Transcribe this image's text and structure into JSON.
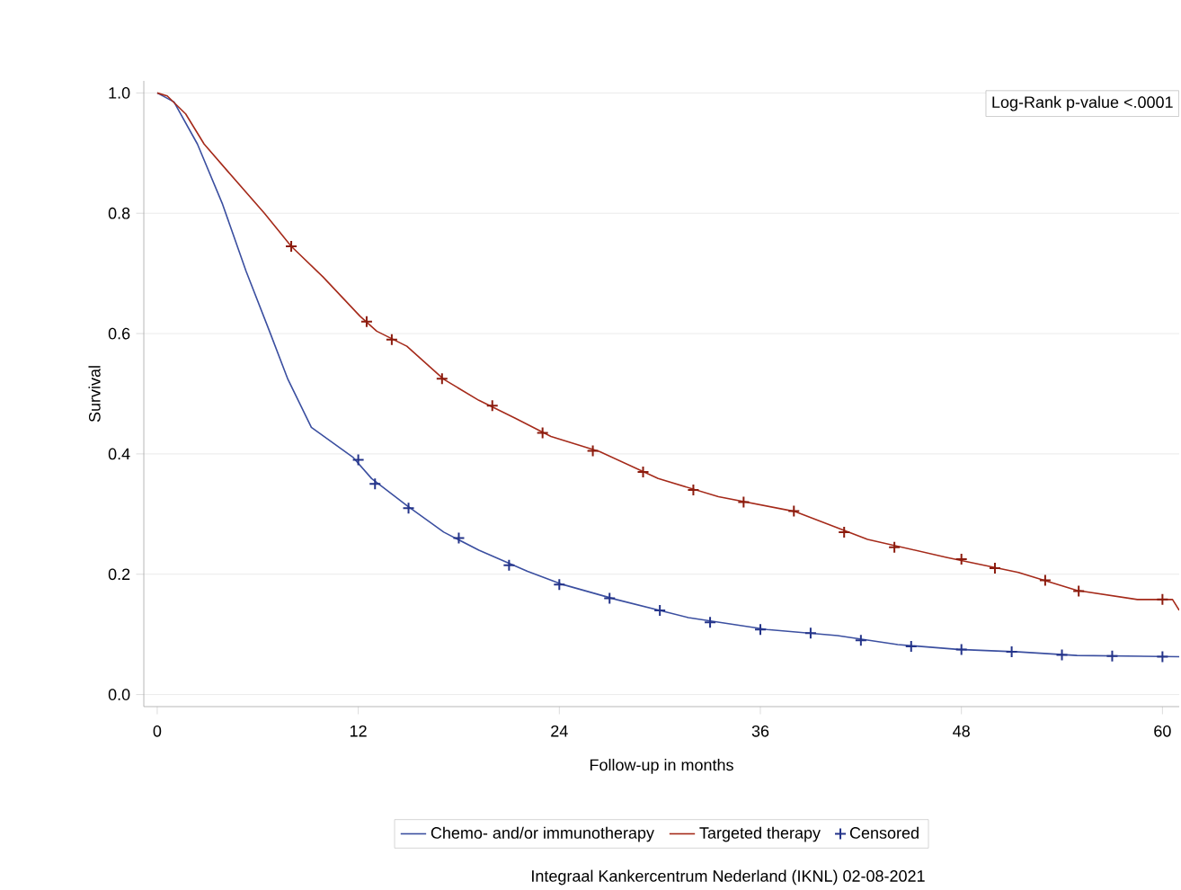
{
  "chart_data": {
    "type": "line",
    "xlabel": "Follow-up in months",
    "ylabel": "Survival",
    "xlim": [
      -0.8,
      61
    ],
    "ylim": [
      -0.02,
      1.02
    ],
    "xticks": [
      0,
      12,
      24,
      36,
      48,
      60
    ],
    "yticks": [
      {
        "value": 0,
        "label": "0.0"
      },
      {
        "value": 0.2,
        "label": "0.2"
      },
      {
        "value": 0.4,
        "label": "0.4"
      },
      {
        "value": 0.6,
        "label": "0.6"
      },
      {
        "value": 0.8,
        "label": "0.8"
      },
      {
        "value": 1,
        "label": "1.0"
      }
    ],
    "grid": "y",
    "legend": "bottom",
    "annotations": [
      "Log-Rank p-value   <.0001",
      "Integraal Kankercentrum Nederland (IKNL)  02-08-2021"
    ],
    "series": [
      {
        "name": "Chemo- and/or immunotherapy",
        "color": "#3b4fa0",
        "type": "line",
        "x": [
          0,
          1.0,
          2.4,
          3.9,
          5.3,
          6.7,
          7.8,
          9.2,
          11.7,
          12.8,
          14.9,
          17.1,
          19.2,
          22.1,
          24.2,
          27.4,
          31.7,
          36.4,
          40.6,
          44.2,
          47.8,
          51.4,
          54.9,
          61
        ],
        "values": [
          1,
          0.985,
          0.915,
          0.815,
          0.704,
          0.604,
          0.524,
          0.444,
          0.394,
          0.359,
          0.314,
          0.27,
          0.24,
          0.205,
          0.183,
          0.158,
          0.128,
          0.108,
          0.098,
          0.083,
          0.075,
          0.071,
          0.065,
          0.063
        ]
      },
      {
        "name": "Targeted therapy",
        "color": "#a52a1a",
        "type": "line",
        "x": [
          0,
          0.6,
          1.7,
          2.8,
          4.2,
          6.4,
          8.0,
          9.9,
          12.1,
          13.1,
          14.9,
          17.1,
          19.2,
          21.4,
          23.5,
          26.4,
          29.9,
          33.5,
          38.1,
          42.4,
          47.1,
          51.4,
          54.9,
          58.5,
          60.6,
          61
        ],
        "values": [
          1,
          0.995,
          0.965,
          0.915,
          0.87,
          0.8,
          0.745,
          0.694,
          0.629,
          0.604,
          0.579,
          0.524,
          0.489,
          0.459,
          0.429,
          0.404,
          0.359,
          0.329,
          0.304,
          0.258,
          0.228,
          0.203,
          0.173,
          0.158,
          0.158,
          0.14
        ]
      },
      {
        "name": "Censored",
        "color": "#24348a",
        "type": "scatter",
        "marker": "cross",
        "x": [
          12,
          13,
          15,
          18,
          21,
          24,
          27,
          30,
          33,
          36,
          39,
          42,
          45,
          48,
          51,
          54,
          57,
          60
        ],
        "values": [
          0.39,
          0.35,
          0.31,
          0.26,
          0.215,
          0.183,
          0.16,
          0.14,
          0.12,
          0.108,
          0.102,
          0.09,
          0.08,
          0.075,
          0.071,
          0.066,
          0.064,
          0.063
        ]
      },
      {
        "color": "#8c1c0e",
        "type": "scatter",
        "marker": "cross",
        "x": [
          8,
          12.5,
          14,
          17,
          20,
          23,
          26,
          29,
          32,
          35,
          38,
          41,
          44,
          48,
          50,
          53,
          55,
          60
        ],
        "values": [
          0.745,
          0.62,
          0.59,
          0.525,
          0.48,
          0.435,
          0.405,
          0.37,
          0.34,
          0.32,
          0.305,
          0.27,
          0.245,
          0.225,
          0.21,
          0.19,
          0.172,
          0.158
        ]
      }
    ]
  }
}
